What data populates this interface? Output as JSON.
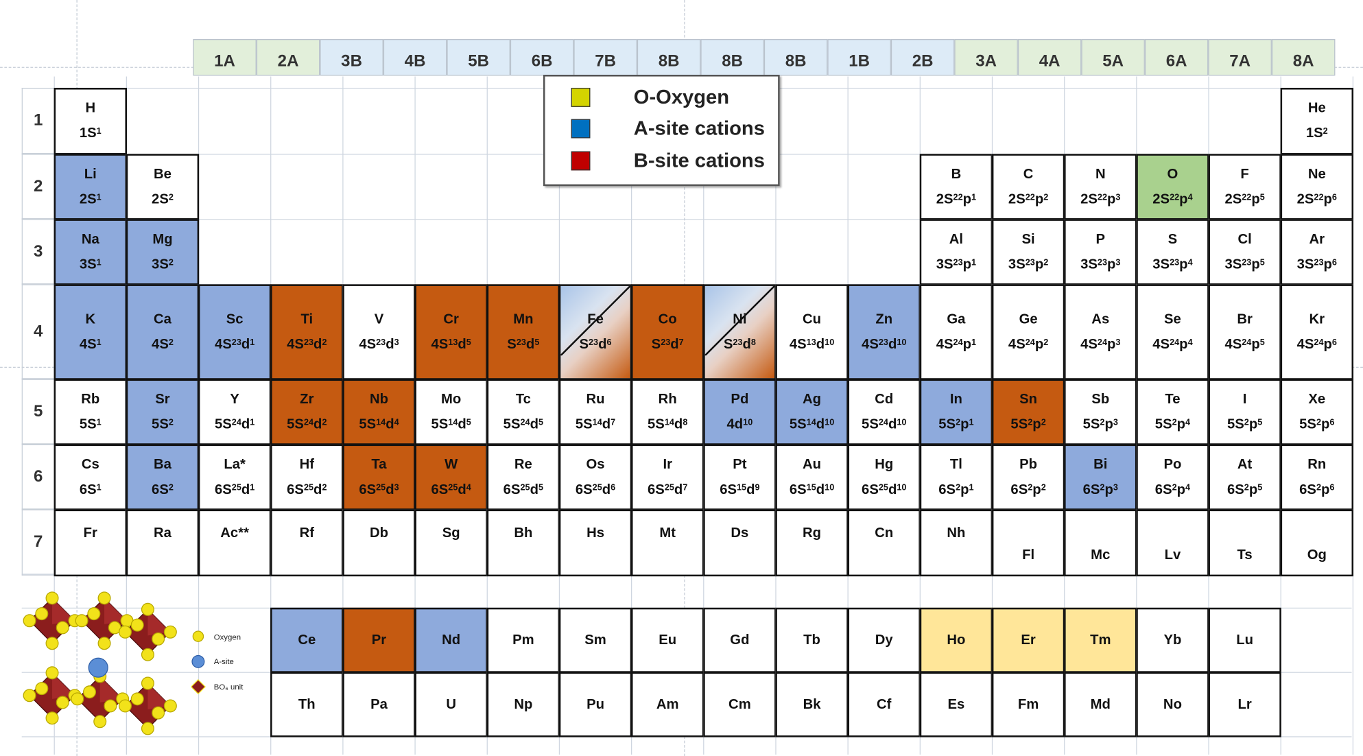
{
  "groups": [
    "1A",
    "2A",
    "3B",
    "4B",
    "5B",
    "6B",
    "7B",
    "8B",
    "8B",
    "8B",
    "1B",
    "2B",
    "3A",
    "4A",
    "5A",
    "6A",
    "7A",
    "8A"
  ],
  "periods": [
    "1",
    "2",
    "3",
    "4",
    "5",
    "6",
    "7"
  ],
  "legend": [
    {
      "label": "O-Oxygen",
      "color": "#d4d400"
    },
    {
      "label": "A-site cations",
      "color": "#0070c0"
    },
    {
      "label": "B-site cations",
      "color": "#c00000"
    }
  ],
  "elements": [
    {
      "sym": "H",
      "cfg": "1S1",
      "row": 1,
      "col": 1
    },
    {
      "sym": "He",
      "cfg": "1S2",
      "row": 1,
      "col": 18
    },
    {
      "sym": "Li",
      "cfg": "2S1",
      "row": 2,
      "col": 1,
      "fill": "blue"
    },
    {
      "sym": "Be",
      "cfg": "2S2",
      "row": 2,
      "col": 2
    },
    {
      "sym": "B",
      "cfg": "2S22p1",
      "row": 2,
      "col": 13
    },
    {
      "sym": "C",
      "cfg": "2S22p2",
      "row": 2,
      "col": 14
    },
    {
      "sym": "N",
      "cfg": "2S22p3",
      "row": 2,
      "col": 15
    },
    {
      "sym": "O",
      "cfg": "2S22p4",
      "row": 2,
      "col": 16,
      "fill": "green"
    },
    {
      "sym": "F",
      "cfg": "2S22p5",
      "row": 2,
      "col": 17
    },
    {
      "sym": "Ne",
      "cfg": "2S22p6",
      "row": 2,
      "col": 18
    },
    {
      "sym": "Na",
      "cfg": "3S1",
      "row": 3,
      "col": 1,
      "fill": "blue"
    },
    {
      "sym": "Mg",
      "cfg": "3S2",
      "row": 3,
      "col": 2,
      "fill": "blue"
    },
    {
      "sym": "Al",
      "cfg": "3S23p1",
      "row": 3,
      "col": 13
    },
    {
      "sym": "Si",
      "cfg": "3S23p2",
      "row": 3,
      "col": 14
    },
    {
      "sym": "P",
      "cfg": "3S23p3",
      "row": 3,
      "col": 15
    },
    {
      "sym": "S",
      "cfg": "3S23p4",
      "row": 3,
      "col": 16
    },
    {
      "sym": "Cl",
      "cfg": "3S23p5",
      "row": 3,
      "col": 17
    },
    {
      "sym": "Ar",
      "cfg": "3S23p6",
      "row": 3,
      "col": 18
    },
    {
      "sym": "K",
      "cfg": "4S1",
      "row": 4,
      "col": 1,
      "fill": "blue"
    },
    {
      "sym": "Ca",
      "cfg": "4S2",
      "row": 4,
      "col": 2,
      "fill": "blue"
    },
    {
      "sym": "Sc",
      "cfg": "4S23d1",
      "row": 4,
      "col": 3,
      "fill": "blue"
    },
    {
      "sym": "Ti",
      "cfg": "4S23d2",
      "row": 4,
      "col": 4,
      "fill": "orange"
    },
    {
      "sym": "V",
      "cfg": "4S23d3",
      "row": 4,
      "col": 5
    },
    {
      "sym": "Cr",
      "cfg": "4S13d5",
      "row": 4,
      "col": 6,
      "fill": "orange"
    },
    {
      "sym": "Mn",
      "cfg": "S23d5",
      "row": 4,
      "col": 7,
      "fill": "orange"
    },
    {
      "sym": "Fe",
      "cfg": "S23d6",
      "row": 4,
      "col": 8,
      "fill": "split"
    },
    {
      "sym": "Co",
      "cfg": "S23d7",
      "row": 4,
      "col": 9,
      "fill": "orange"
    },
    {
      "sym": "Ni",
      "cfg": "S23d8",
      "row": 4,
      "col": 10,
      "fill": "split"
    },
    {
      "sym": "Cu",
      "cfg": "4S13d10",
      "row": 4,
      "col": 11
    },
    {
      "sym": "Zn",
      "cfg": "4S23d10",
      "row": 4,
      "col": 12,
      "fill": "blue"
    },
    {
      "sym": "Ga",
      "cfg": "4S24p1",
      "row": 4,
      "col": 13
    },
    {
      "sym": "Ge",
      "cfg": "4S24p2",
      "row": 4,
      "col": 14
    },
    {
      "sym": "As",
      "cfg": "4S24p3",
      "row": 4,
      "col": 15
    },
    {
      "sym": "Se",
      "cfg": "4S24p4",
      "row": 4,
      "col": 16
    },
    {
      "sym": "Br",
      "cfg": "4S24p5",
      "row": 4,
      "col": 17
    },
    {
      "sym": "Kr",
      "cfg": "4S24p6",
      "row": 4,
      "col": 18
    },
    {
      "sym": "Rb",
      "cfg": "5S1",
      "row": 5,
      "col": 1
    },
    {
      "sym": "Sr",
      "cfg": "5S2",
      "row": 5,
      "col": 2,
      "fill": "blue"
    },
    {
      "sym": "Y",
      "cfg": "5S24d1",
      "row": 5,
      "col": 3
    },
    {
      "sym": "Zr",
      "cfg": "5S24d2",
      "row": 5,
      "col": 4,
      "fill": "orange"
    },
    {
      "sym": "Nb",
      "cfg": "5S14d4",
      "row": 5,
      "col": 5,
      "fill": "orange"
    },
    {
      "sym": "Mo",
      "cfg": "5S14d5",
      "row": 5,
      "col": 6
    },
    {
      "sym": "Tc",
      "cfg": "5S24d5",
      "row": 5,
      "col": 7
    },
    {
      "sym": "Ru",
      "cfg": "5S14d7",
      "row": 5,
      "col": 8
    },
    {
      "sym": "Rh",
      "cfg": "5S14d8",
      "row": 5,
      "col": 9
    },
    {
      "sym": "Pd",
      "cfg": "4d10",
      "row": 5,
      "col": 10,
      "fill": "blue"
    },
    {
      "sym": "Ag",
      "cfg": "5S14d10",
      "row": 5,
      "col": 11,
      "fill": "blue"
    },
    {
      "sym": "Cd",
      "cfg": "5S24d10",
      "row": 5,
      "col": 12
    },
    {
      "sym": "In",
      "cfg": "5S2p1",
      "row": 5,
      "col": 13,
      "fill": "blue"
    },
    {
      "sym": "Sn",
      "cfg": "5S2p2",
      "row": 5,
      "col": 14,
      "fill": "orange"
    },
    {
      "sym": "Sb",
      "cfg": "5S2p3",
      "row": 5,
      "col": 15
    },
    {
      "sym": "Te",
      "cfg": "5S2p4",
      "row": 5,
      "col": 16
    },
    {
      "sym": "I",
      "cfg": "5S2p5",
      "row": 5,
      "col": 17
    },
    {
      "sym": "Xe",
      "cfg": "5S2p6",
      "row": 5,
      "col": 18
    },
    {
      "sym": "Cs",
      "cfg": "6S1",
      "row": 6,
      "col": 1
    },
    {
      "sym": "Ba",
      "cfg": "6S2",
      "row": 6,
      "col": 2,
      "fill": "blue"
    },
    {
      "sym": "La*",
      "cfg": "6S25d1",
      "row": 6,
      "col": 3
    },
    {
      "sym": "Hf",
      "cfg": "6S25d2",
      "row": 6,
      "col": 4
    },
    {
      "sym": "Ta",
      "cfg": "6S25d3",
      "row": 6,
      "col": 5,
      "fill": "orange"
    },
    {
      "sym": "W",
      "cfg": "6S25d4",
      "row": 6,
      "col": 6,
      "fill": "orange"
    },
    {
      "sym": "Re",
      "cfg": "6S25d5",
      "row": 6,
      "col": 7
    },
    {
      "sym": "Os",
      "cfg": "6S25d6",
      "row": 6,
      "col": 8
    },
    {
      "sym": "Ir",
      "cfg": "6S25d7",
      "row": 6,
      "col": 9
    },
    {
      "sym": "Pt",
      "cfg": "6S15d9",
      "row": 6,
      "col": 10
    },
    {
      "sym": "Au",
      "cfg": "6S15d10",
      "row": 6,
      "col": 11
    },
    {
      "sym": "Hg",
      "cfg": "6S25d10",
      "row": 6,
      "col": 12
    },
    {
      "sym": "Tl",
      "cfg": "6S2p1",
      "row": 6,
      "col": 13
    },
    {
      "sym": "Pb",
      "cfg": "6S2p2",
      "row": 6,
      "col": 14
    },
    {
      "sym": "Bi",
      "cfg": "6S2p3",
      "row": 6,
      "col": 15,
      "fill": "blue"
    },
    {
      "sym": "Po",
      "cfg": "6S2p4",
      "row": 6,
      "col": 16
    },
    {
      "sym": "At",
      "cfg": "6S2p5",
      "row": 6,
      "col": 17
    },
    {
      "sym": "Rn",
      "cfg": "6S2p6",
      "row": 6,
      "col": 18
    },
    {
      "sym": "Fr",
      "row": 7,
      "col": 1
    },
    {
      "sym": "Ra",
      "row": 7,
      "col": 2
    },
    {
      "sym": "Ac**",
      "row": 7,
      "col": 3
    },
    {
      "sym": "Rf",
      "row": 7,
      "col": 4
    },
    {
      "sym": "Db",
      "row": 7,
      "col": 5
    },
    {
      "sym": "Sg",
      "row": 7,
      "col": 6
    },
    {
      "sym": "Bh",
      "row": 7,
      "col": 7
    },
    {
      "sym": "Hs",
      "row": 7,
      "col": 8
    },
    {
      "sym": "Mt",
      "row": 7,
      "col": 9
    },
    {
      "sym": "Ds",
      "row": 7,
      "col": 10
    },
    {
      "sym": "Rg",
      "row": 7,
      "col": 11
    },
    {
      "sym": "Cn",
      "row": 7,
      "col": 12
    },
    {
      "sym": "Nh",
      "row": 7,
      "col": 13
    },
    {
      "sym": "Fl",
      "row": 7,
      "col": 14
    },
    {
      "sym": "Mc",
      "row": 7,
      "col": 15
    },
    {
      "sym": "Lv",
      "row": 7,
      "col": 16
    },
    {
      "sym": "Ts",
      "row": 7,
      "col": 17
    },
    {
      "sym": "Og",
      "row": 7,
      "col": 18
    },
    {
      "sym": "Ce",
      "row": 9,
      "col": 4,
      "fill": "blue"
    },
    {
      "sym": "Pr",
      "row": 9,
      "col": 5,
      "fill": "orange"
    },
    {
      "sym": "Nd",
      "row": 9,
      "col": 6,
      "fill": "blue"
    },
    {
      "sym": "Pm",
      "row": 9,
      "col": 7
    },
    {
      "sym": "Sm",
      "row": 9,
      "col": 8
    },
    {
      "sym": "Eu",
      "row": 9,
      "col": 9
    },
    {
      "sym": "Gd",
      "row": 9,
      "col": 10
    },
    {
      "sym": "Tb",
      "row": 9,
      "col": 11
    },
    {
      "sym": "Dy",
      "row": 9,
      "col": 12
    },
    {
      "sym": "Ho",
      "row": 9,
      "col": 13,
      "fill": "yellow"
    },
    {
      "sym": "Er",
      "row": 9,
      "col": 14,
      "fill": "yellow"
    },
    {
      "sym": "Tm",
      "row": 9,
      "col": 15,
      "fill": "yellow"
    },
    {
      "sym": "Yb",
      "row": 9,
      "col": 16
    },
    {
      "sym": "Lu",
      "row": 9,
      "col": 17
    },
    {
      "sym": "Th",
      "row": 10,
      "col": 4
    },
    {
      "sym": "Pa",
      "row": 10,
      "col": 5
    },
    {
      "sym": "U",
      "row": 10,
      "col": 6
    },
    {
      "sym": "Np",
      "row": 10,
      "col": 7
    },
    {
      "sym": "Pu",
      "row": 10,
      "col": 8
    },
    {
      "sym": "Am",
      "row": 10,
      "col": 9
    },
    {
      "sym": "Cm",
      "row": 10,
      "col": 10
    },
    {
      "sym": "Bk",
      "row": 10,
      "col": 11
    },
    {
      "sym": "Cf",
      "row": 10,
      "col": 12
    },
    {
      "sym": "Es",
      "row": 10,
      "col": 13
    },
    {
      "sym": "Fm",
      "row": 10,
      "col": 14
    },
    {
      "sym": "Md",
      "row": 10,
      "col": 15
    },
    {
      "sym": "No",
      "row": 10,
      "col": 16
    },
    {
      "sym": "Lr",
      "row": 10,
      "col": 17
    }
  ],
  "structure_legend": {
    "oxygen": "Oxygen",
    "a_site": "A-site",
    "bo6": "BO₆ unit"
  },
  "colors": {
    "blue": "#8eaadc",
    "orange": "#c55a11",
    "green": "#a9d18e",
    "yellow": "#ffe699"
  }
}
